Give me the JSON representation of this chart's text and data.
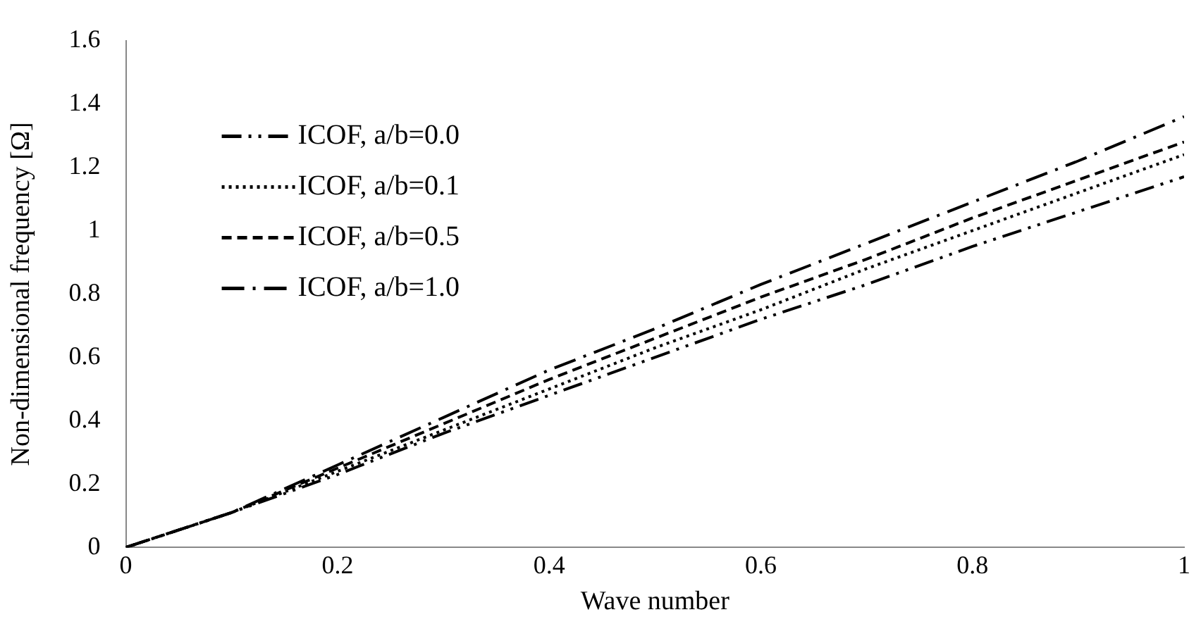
{
  "chart_data": {
    "type": "line",
    "xlabel": "Wave number",
    "ylabel": "Non-dimensional frequency [Ω]",
    "x": [
      0,
      0.1,
      0.2,
      0.3,
      0.4,
      0.5,
      0.6,
      0.7,
      0.8,
      0.9,
      1
    ],
    "series": [
      {
        "name": "ICOF, a/b=0.0",
        "color": "#000000",
        "line_style": "dashed",
        "values": [
          0,
          0.11,
          0.23,
          0.36,
          0.48,
          0.6,
          0.72,
          0.83,
          0.95,
          1.06,
          1.17
        ]
      },
      {
        "name": "ICOF, a/b=0.1",
        "color": "#000000",
        "line_style": "dotted",
        "values": [
          0,
          0.11,
          0.24,
          0.37,
          0.5,
          0.63,
          0.75,
          0.88,
          1.0,
          1.12,
          1.24
        ]
      },
      {
        "name": "ICOF, a/b=0.5",
        "color": "#000000",
        "line_style": "dashed",
        "values": [
          0,
          0.11,
          0.25,
          0.39,
          0.53,
          0.66,
          0.79,
          0.91,
          1.04,
          1.16,
          1.28
        ]
      },
      {
        "name": "ICOF, a/b=1.0",
        "color": "#000000",
        "line_style": "dashed",
        "values": [
          0,
          0.11,
          0.26,
          0.41,
          0.56,
          0.69,
          0.83,
          0.96,
          1.09,
          1.22,
          1.36
        ]
      }
    ],
    "xlim": [
      0,
      1
    ],
    "xticks": [
      0,
      0.2,
      0.4,
      0.6,
      0.8,
      1
    ],
    "ylim": [
      0,
      1.6
    ],
    "yticks": [
      0,
      0.2,
      0.4,
      0.6,
      0.8,
      1,
      1.2,
      1.4,
      1.6
    ],
    "grid": false,
    "legend": "top left",
    "marker": "none"
  }
}
